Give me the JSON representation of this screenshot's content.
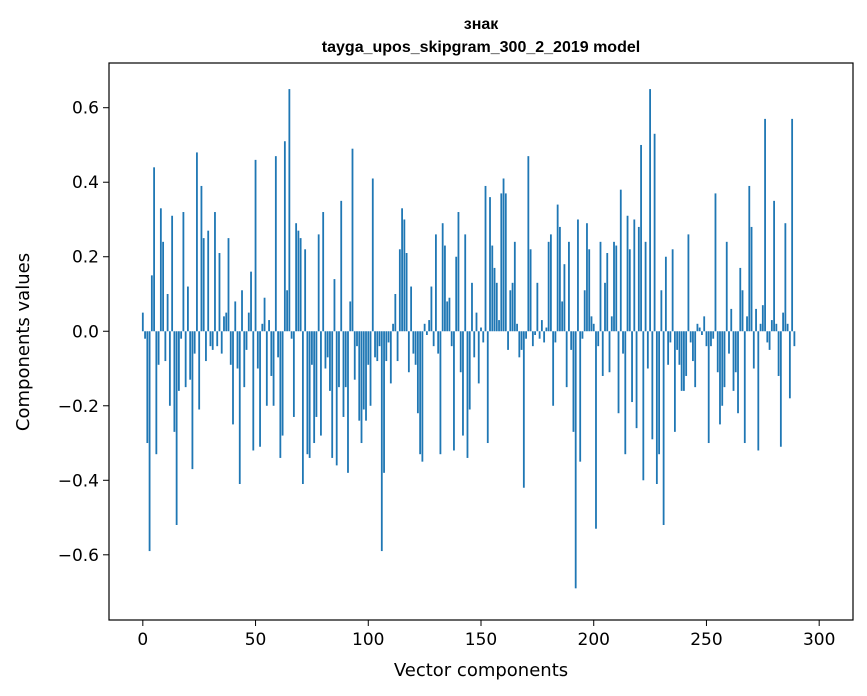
{
  "chart_data": {
    "type": "bar",
    "title": "знак",
    "subtitle": "tayga_upos_skipgram_300_2_2019 model",
    "xlabel": "Vector components",
    "ylabel": "Components values",
    "xlim": [
      -15,
      315
    ],
    "ylim": [
      -0.775,
      0.72
    ],
    "xticks": [
      0,
      50,
      100,
      150,
      200,
      250,
      300
    ],
    "xtick_labels": [
      "0",
      "50",
      "100",
      "150",
      "200",
      "250",
      "300"
    ],
    "yticks": [
      -0.6,
      -0.4,
      -0.2,
      0.0,
      0.2,
      0.4,
      0.6
    ],
    "ytick_labels": [
      "−0.6",
      "−0.4",
      "−0.2",
      "0.0",
      "0.2",
      "0.4",
      "0.6"
    ],
    "grid": false,
    "bar_color": "#1f77b4",
    "values": [
      0.05,
      -0.02,
      -0.3,
      -0.59,
      0.15,
      0.44,
      -0.33,
      -0.09,
      0.33,
      0.24,
      -0.08,
      0.1,
      -0.2,
      0.31,
      -0.27,
      -0.52,
      -0.16,
      -0.02,
      0.32,
      -0.15,
      0.12,
      -0.13,
      -0.37,
      -0.06,
      0.48,
      -0.21,
      0.39,
      0.25,
      -0.08,
      0.27,
      -0.04,
      -0.05,
      0.32,
      -0.04,
      0.21,
      -0.06,
      0.04,
      0.05,
      0.25,
      -0.09,
      -0.25,
      0.08,
      -0.1,
      -0.41,
      0.11,
      -0.15,
      -0.05,
      0.05,
      0.16,
      -0.32,
      0.46,
      -0.1,
      -0.31,
      0.02,
      0.09,
      -0.2,
      0.03,
      -0.12,
      -0.2,
      0.47,
      -0.07,
      -0.34,
      -0.28,
      0.51,
      0.11,
      0.65,
      -0.02,
      -0.23,
      0.29,
      0.27,
      0.25,
      -0.41,
      0.22,
      -0.33,
      -0.34,
      -0.09,
      -0.3,
      -0.23,
      0.26,
      -0.28,
      0.32,
      -0.1,
      -0.07,
      -0.16,
      -0.34,
      0.14,
      -0.36,
      -0.15,
      0.35,
      -0.23,
      -0.15,
      -0.38,
      0.08,
      0.49,
      -0.13,
      -0.04,
      -0.24,
      -0.3,
      -0.21,
      -0.24,
      -0.09,
      -0.2,
      0.41,
      -0.07,
      -0.08,
      -0.04,
      -0.59,
      -0.38,
      -0.08,
      -0.03,
      -0.14,
      0.02,
      0.1,
      -0.08,
      0.22,
      0.33,
      0.3,
      0.21,
      -0.11,
      0.12,
      -0.06,
      -0.09,
      -0.22,
      -0.33,
      -0.35,
      0.02,
      -0.01,
      0.03,
      0.12,
      -0.04,
      0.26,
      -0.06,
      -0.33,
      0.29,
      0.23,
      0.08,
      0.09,
      -0.04,
      -0.32,
      0.2,
      0.32,
      -0.11,
      -0.28,
      0.26,
      -0.34,
      -0.21,
      0.13,
      -0.07,
      0.05,
      -0.14,
      0.01,
      -0.03,
      0.39,
      -0.3,
      0.36,
      0.23,
      0.17,
      0.13,
      0.03,
      0.37,
      0.41,
      0.37,
      -0.05,
      0.11,
      0.13,
      0.24,
      0.02,
      -0.07,
      -0.05,
      -0.42,
      -0.02,
      0.47,
      0.22,
      -0.04,
      -0.01,
      0.13,
      -0.02,
      0.03,
      -0.03,
      0.01,
      0.24,
      0.26,
      -0.2,
      -0.03,
      0.34,
      0.28,
      0.08,
      0.18,
      -0.15,
      0.24,
      -0.05,
      -0.27,
      -0.69,
      0.3,
      -0.35,
      -0.02,
      0.11,
      0.29,
      0.22,
      0.04,
      0.02,
      -0.53,
      -0.04,
      0.24,
      -0.12,
      0.13,
      0.21,
      -0.11,
      0.04,
      0.24,
      0.23,
      -0.22,
      0.38,
      -0.06,
      -0.33,
      0.31,
      0.22,
      -0.19,
      0.3,
      -0.26,
      0.28,
      0.5,
      -0.4,
      0.24,
      -0.1,
      0.65,
      -0.29,
      0.53,
      -0.41,
      -0.33,
      0.11,
      -0.52,
      0.2,
      -0.09,
      -0.03,
      0.22,
      -0.27,
      -0.05,
      -0.09,
      -0.16,
      -0.16,
      -0.12,
      0.26,
      -0.03,
      -0.08,
      -0.15,
      0.02,
      0.01,
      -0.01,
      0.04,
      -0.04,
      -0.3,
      -0.04,
      -0.02,
      0.37,
      -0.11,
      -0.25,
      -0.2,
      -0.15,
      0.24,
      -0.06,
      0.06,
      -0.16,
      -0.11,
      -0.22,
      0.17,
      0.11,
      -0.3,
      0.04,
      0.39,
      0.28,
      -0.1,
      0.06,
      -0.32,
      0.02,
      0.07,
      0.57,
      -0.03,
      -0.05,
      0.03,
      0.35,
      0.02,
      -0.12,
      -0.31,
      0.05,
      0.29,
      0.02,
      -0.18,
      0.57,
      -0.04
    ]
  }
}
